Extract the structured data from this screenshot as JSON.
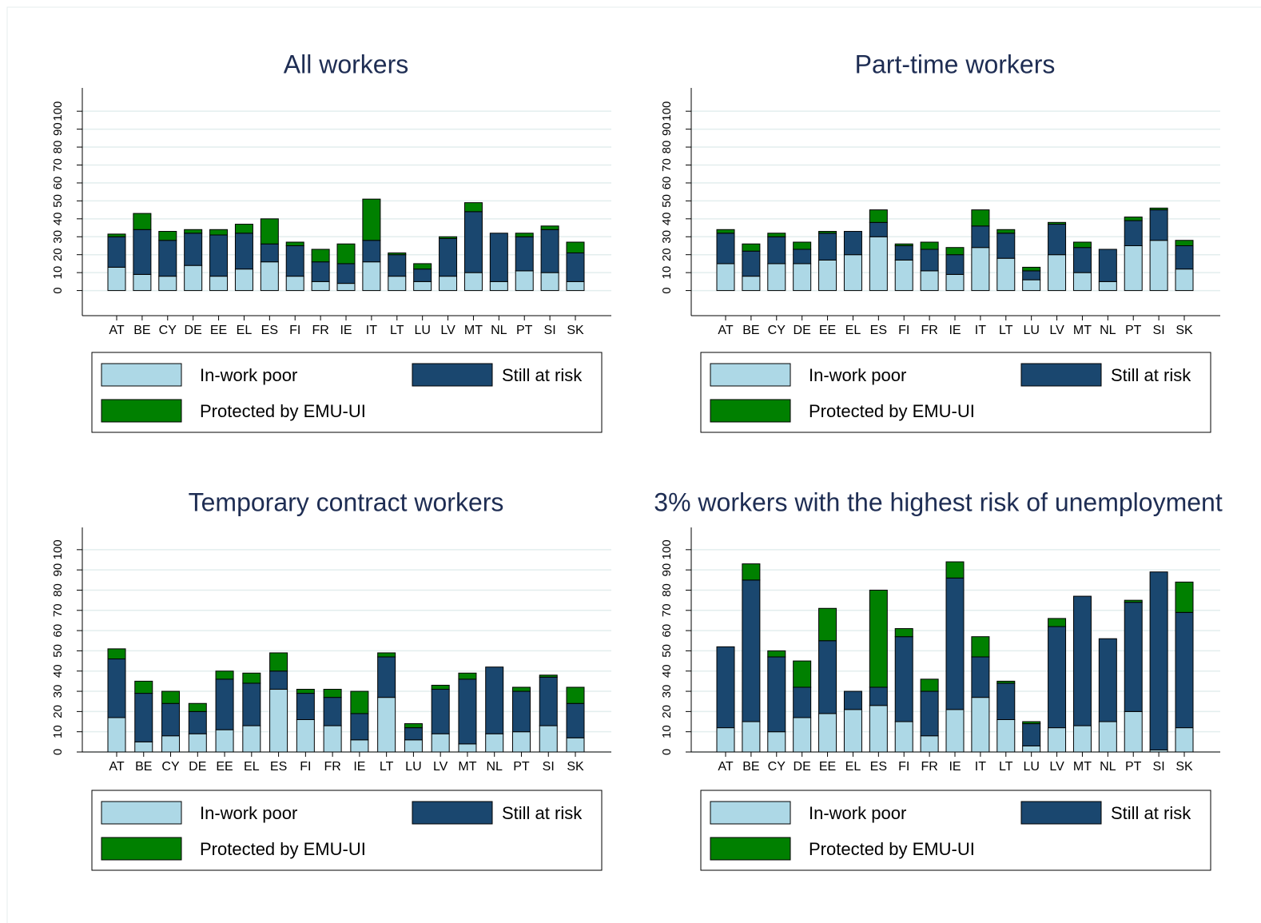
{
  "chart_data": [
    {
      "type": "bar",
      "stacked": true,
      "title": "All workers",
      "categories": [
        "AT",
        "BE",
        "CY",
        "DE",
        "EE",
        "EL",
        "ES",
        "FI",
        "FR",
        "IE",
        "IT",
        "LT",
        "LU",
        "LV",
        "MT",
        "NL",
        "PT",
        "SI",
        "SK"
      ],
      "series": [
        {
          "name": "In-work poor",
          "color": "#add8e6",
          "values": [
            13,
            9,
            8,
            14,
            8,
            12,
            16,
            8,
            5,
            4,
            16,
            8,
            5,
            8,
            10,
            5,
            11,
            10,
            5
          ]
        },
        {
          "name": "Still at risk",
          "color": "#1a476f",
          "values": [
            17,
            25,
            20,
            18,
            23,
            20,
            10,
            17,
            11,
            11,
            12,
            12,
            7,
            21,
            34,
            27,
            19,
            24,
            16
          ]
        },
        {
          "name": "Protected by EMU-UI",
          "color": "#008000",
          "values": [
            1.5,
            9,
            5,
            2,
            3,
            5,
            14,
            2,
            7,
            11,
            23,
            1,
            3,
            1,
            5,
            0,
            2,
            2,
            6
          ]
        }
      ],
      "ylim": [
        -14,
        113
      ],
      "yticks": [
        0,
        10,
        20,
        30,
        40,
        50,
        60,
        70,
        80,
        90,
        100
      ],
      "grid": true
    },
    {
      "type": "bar",
      "stacked": true,
      "title": "Part-time workers",
      "categories": [
        "AT",
        "BE",
        "CY",
        "DE",
        "EE",
        "EL",
        "ES",
        "FI",
        "FR",
        "IE",
        "IT",
        "LT",
        "LU",
        "LV",
        "MT",
        "NL",
        "PT",
        "SI",
        "SK"
      ],
      "series": [
        {
          "name": "In-work poor",
          "color": "#add8e6",
          "values": [
            15,
            8,
            15,
            15,
            17,
            20,
            30,
            17,
            11,
            9,
            24,
            18,
            6,
            20,
            10,
            5,
            25,
            28,
            12
          ]
        },
        {
          "name": "Still at risk",
          "color": "#1a476f",
          "values": [
            17,
            14,
            15,
            8,
            15,
            13,
            8,
            8,
            12,
            11,
            12,
            14,
            5,
            17,
            14,
            18,
            14,
            17,
            13
          ]
        },
        {
          "name": "Protected by EMU-UI",
          "color": "#008000",
          "values": [
            2,
            4,
            2,
            4,
            1,
            0,
            7,
            1,
            4,
            4,
            9,
            2,
            2,
            1,
            3,
            0,
            2,
            1,
            3
          ]
        }
      ],
      "ylim": [
        -14,
        113
      ],
      "yticks": [
        0,
        10,
        20,
        30,
        40,
        50,
        60,
        70,
        80,
        90,
        100
      ],
      "grid": true
    },
    {
      "type": "bar",
      "stacked": true,
      "title": "Temporary contract workers",
      "categories": [
        "AT",
        "BE",
        "CY",
        "DE",
        "EE",
        "EL",
        "ES",
        "FI",
        "FR",
        "IE",
        "LT",
        "LU",
        "LV",
        "MT",
        "NL",
        "PT",
        "SI",
        "SK"
      ],
      "series": [
        {
          "name": "In-work poor",
          "color": "#add8e6",
          "values": [
            17,
            5,
            8,
            9,
            11,
            13,
            31,
            16,
            13,
            6,
            27,
            6,
            9,
            4,
            9,
            10,
            13,
            7
          ]
        },
        {
          "name": "Still at risk",
          "color": "#1a476f",
          "values": [
            29,
            24,
            16,
            11,
            25,
            21,
            9,
            13,
            14,
            13,
            20,
            6,
            22,
            32,
            33,
            20,
            24,
            17
          ]
        },
        {
          "name": "Protected by EMU-UI",
          "color": "#008000",
          "values": [
            5,
            6,
            6,
            4,
            4,
            5,
            9,
            2,
            4,
            11,
            2,
            2,
            2,
            3,
            0,
            2,
            1,
            8
          ]
        }
      ],
      "ylim": [
        0,
        111
      ],
      "yticks": [
        0,
        10,
        20,
        30,
        40,
        50,
        60,
        70,
        80,
        90,
        100
      ],
      "grid": true
    },
    {
      "type": "bar",
      "stacked": true,
      "title": "3% workers with the highest risk of unemployment",
      "categories": [
        "AT",
        "BE",
        "CY",
        "DE",
        "EE",
        "EL",
        "ES",
        "FI",
        "FR",
        "IE",
        "IT",
        "LT",
        "LU",
        "LV",
        "MT",
        "NL",
        "PT",
        "SI",
        "SK"
      ],
      "series": [
        {
          "name": "In-work poor",
          "color": "#add8e6",
          "values": [
            12,
            15,
            10,
            17,
            19,
            21,
            23,
            15,
            8,
            21,
            27,
            16,
            3,
            12,
            13,
            15,
            20,
            1,
            12
          ]
        },
        {
          "name": "Still at risk",
          "color": "#1a476f",
          "values": [
            40,
            70,
            37,
            15,
            36,
            9,
            9,
            42,
            22,
            65,
            20,
            18,
            11,
            50,
            64,
            41,
            54,
            88,
            57
          ]
        },
        {
          "name": "Protected by EMU-UI",
          "color": "#008000",
          "values": [
            0,
            8,
            3,
            13,
            16,
            0,
            48,
            4,
            6,
            8,
            10,
            1,
            1,
            4,
            0,
            0,
            1,
            0,
            15
          ]
        }
      ],
      "ylim": [
        0,
        111
      ],
      "yticks": [
        0,
        10,
        20,
        30,
        40,
        50,
        60,
        70,
        80,
        90,
        100
      ],
      "grid": true
    }
  ]
}
